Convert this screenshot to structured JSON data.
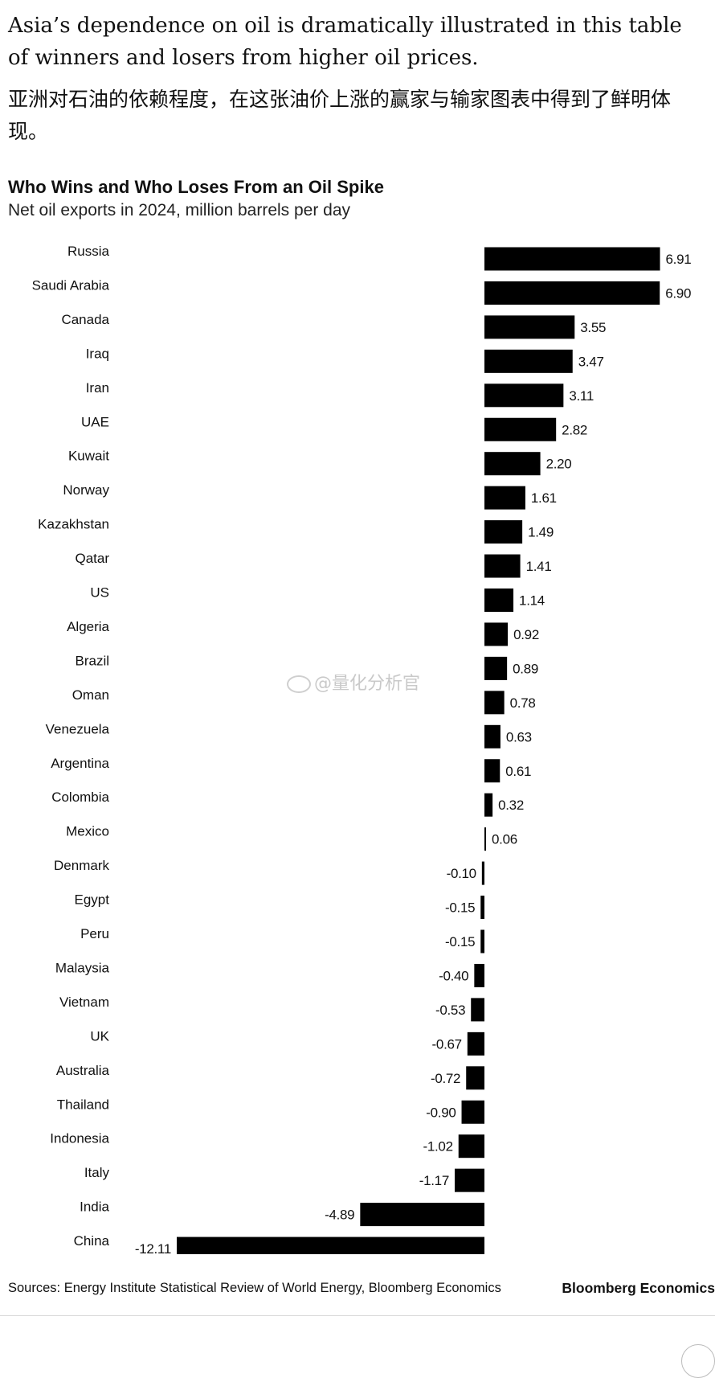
{
  "article": {
    "intro_en": "Asia’s dependence on oil is dramatically illustrated in this table of winners and losers from higher oil prices.",
    "intro_zh": "亚洲对石油的依赖程度，在这张油价上涨的赢家与输家图表中得到了鲜明体现。"
  },
  "watermark": "@量化分析官",
  "chart_data": {
    "type": "bar",
    "orientation": "horizontal",
    "title": "Who Wins and Who Loses From an Oil Spike",
    "subtitle": "Net oil exports in 2024, million barrels per day",
    "categories": [
      "Russia",
      "Saudi Arabia",
      "Canada",
      "Iraq",
      "Iran",
      "UAE",
      "Kuwait",
      "Norway",
      "Kazakhstan",
      "Qatar",
      "US",
      "Algeria",
      "Brazil",
      "Oman",
      "Venezuela",
      "Argentina",
      "Colombia",
      "Mexico",
      "Denmark",
      "Egypt",
      "Peru",
      "Malaysia",
      "Vietnam",
      "UK",
      "Australia",
      "Thailand",
      "Indonesia",
      "Italy",
      "India",
      "China"
    ],
    "values": [
      6.91,
      6.9,
      3.55,
      3.47,
      3.11,
      2.82,
      2.2,
      1.61,
      1.49,
      1.41,
      1.14,
      0.92,
      0.89,
      0.78,
      0.63,
      0.61,
      0.32,
      0.06,
      -0.1,
      -0.15,
      -0.15,
      -0.4,
      -0.53,
      -0.67,
      -0.72,
      -0.9,
      -1.02,
      -1.17,
      -4.89,
      -12.11
    ],
    "value_labels": [
      "6.91",
      "6.90",
      "3.55",
      "3.47",
      "3.11",
      "2.82",
      "2.20",
      "1.61",
      "1.49",
      "1.41",
      "1.14",
      "0.92",
      "0.89",
      "0.78",
      "0.63",
      "0.61",
      "0.32",
      "0.06",
      "-0.10",
      "-0.15",
      "-0.15",
      "-0.40",
      "-0.53",
      "-0.67",
      "-0.72",
      "-0.90",
      "-1.02",
      "-1.17",
      "-4.89",
      "-12.11"
    ],
    "xlim": [
      -12.11,
      6.91
    ],
    "bar_color": "#000000",
    "grid": false,
    "legend": false,
    "source": "Sources: Energy Institute Statistical Review of World Energy, Bloomberg Economics",
    "brand": "Bloomberg Economics"
  }
}
